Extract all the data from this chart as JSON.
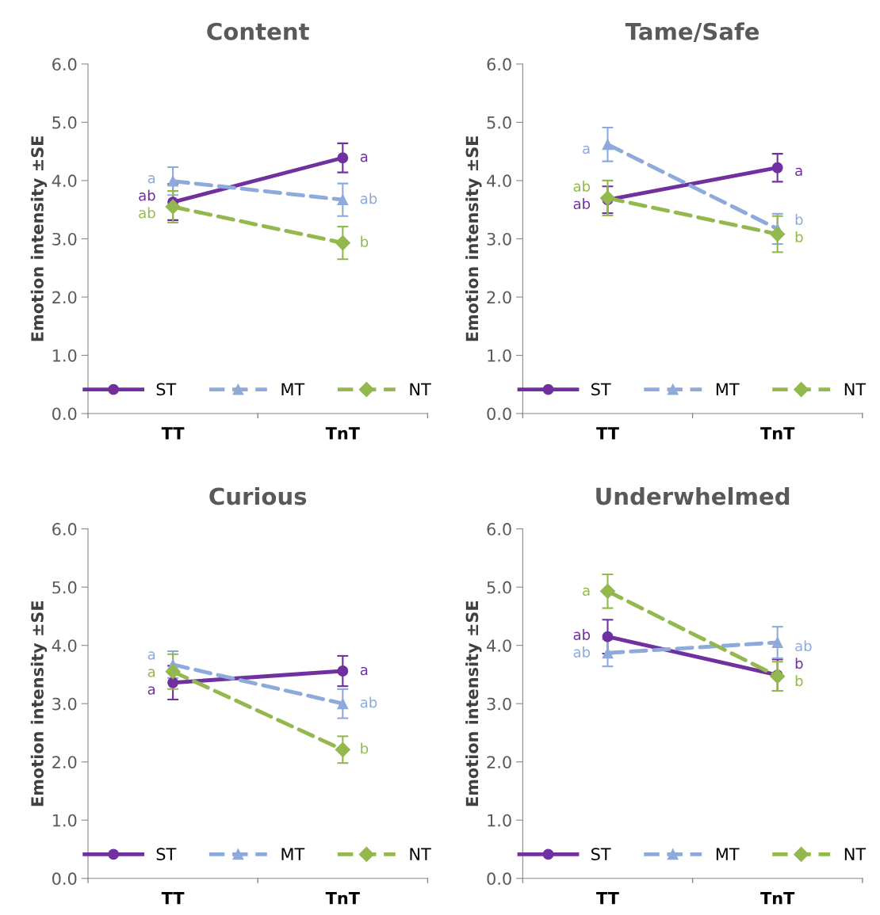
{
  "chart_data": [
    {
      "type": "line",
      "title": "Content",
      "ylabel": "Emotion intensity ±SE",
      "categories": [
        "TT",
        "TnT"
      ],
      "ylim": [
        0.0,
        6.0
      ],
      "yticks": [
        {
          "value": 0,
          "label": "0.0"
        },
        {
          "value": 1,
          "label": "1.0"
        },
        {
          "value": 2,
          "label": "2.0"
        },
        {
          "value": 3,
          "label": "3.0"
        },
        {
          "value": 4,
          "label": "4.0"
        },
        {
          "value": 5,
          "label": "5.0"
        },
        {
          "value": 6,
          "label": "6.0"
        }
      ],
      "grid": false,
      "legend": "bottom",
      "series": [
        {
          "name": "ST",
          "color": "#7030a0",
          "values": [
            3.63,
            4.39
          ],
          "errors": [
            0.31,
            0.25
          ],
          "value_labels": [
            "ab",
            "a"
          ],
          "marker": "circle",
          "line_style": "solid"
        },
        {
          "name": "MT",
          "color": "#8eaadb",
          "values": [
            3.99,
            3.67
          ],
          "errors": [
            0.24,
            0.28
          ],
          "value_labels": [
            "a",
            "ab"
          ],
          "marker": "triangle",
          "line_style": "dashed"
        },
        {
          "name": "NT",
          "color": "#92b84e",
          "values": [
            3.55,
            2.93
          ],
          "errors": [
            0.27,
            0.28
          ],
          "value_labels": [
            "ab",
            "b"
          ],
          "marker": "diamond",
          "line_style": "dashed"
        }
      ]
    },
    {
      "type": "line",
      "title": "Tame/Safe",
      "ylabel": "Emotion intensity ±SE",
      "categories": [
        "TT",
        "TnT"
      ],
      "ylim": [
        0.0,
        6.0
      ],
      "yticks": [
        {
          "value": 0,
          "label": "0.0"
        },
        {
          "value": 1,
          "label": "1.0"
        },
        {
          "value": 2,
          "label": "2.0"
        },
        {
          "value": 3,
          "label": "3.0"
        },
        {
          "value": 4,
          "label": "4.0"
        },
        {
          "value": 5,
          "label": "5.0"
        },
        {
          "value": 6,
          "label": "6.0"
        }
      ],
      "grid": false,
      "legend": "bottom",
      "series": [
        {
          "name": "ST",
          "color": "#7030a0",
          "values": [
            3.67,
            4.22
          ],
          "errors": [
            0.23,
            0.24
          ],
          "value_labels": [
            "ab",
            "a"
          ],
          "marker": "circle",
          "line_style": "solid"
        },
        {
          "name": "MT",
          "color": "#8eaadb",
          "values": [
            4.62,
            3.17
          ],
          "errors": [
            0.29,
            0.26
          ],
          "value_labels": [
            "a",
            "b"
          ],
          "marker": "triangle",
          "line_style": "dashed"
        },
        {
          "name": "NT",
          "color": "#92b84e",
          "values": [
            3.7,
            3.08
          ],
          "errors": [
            0.3,
            0.31
          ],
          "value_labels": [
            "ab",
            "b"
          ],
          "marker": "diamond",
          "line_style": "dashed"
        }
      ]
    },
    {
      "type": "line",
      "title": "Curious",
      "ylabel": "Emotion intensity ±SE",
      "categories": [
        "TT",
        "TnT"
      ],
      "ylim": [
        0.0,
        6.0
      ],
      "yticks": [
        {
          "value": 0,
          "label": "0.0"
        },
        {
          "value": 1,
          "label": "1.0"
        },
        {
          "value": 2,
          "label": "2.0"
        },
        {
          "value": 3,
          "label": "3.0"
        },
        {
          "value": 4,
          "label": "4.0"
        },
        {
          "value": 5,
          "label": "5.0"
        },
        {
          "value": 6,
          "label": "6.0"
        }
      ],
      "grid": false,
      "legend": "bottom",
      "series": [
        {
          "name": "ST",
          "color": "#7030a0",
          "values": [
            3.36,
            3.56
          ],
          "errors": [
            0.29,
            0.26
          ],
          "value_labels": [
            "a",
            "a"
          ],
          "marker": "circle",
          "line_style": "solid"
        },
        {
          "name": "MT",
          "color": "#8eaadb",
          "values": [
            3.67,
            3.0
          ],
          "errors": [
            0.23,
            0.25
          ],
          "value_labels": [
            "a",
            "ab"
          ],
          "marker": "triangle",
          "line_style": "dashed"
        },
        {
          "name": "NT",
          "color": "#92b84e",
          "values": [
            3.55,
            2.21
          ],
          "errors": [
            0.3,
            0.23
          ],
          "value_labels": [
            "a",
            "b"
          ],
          "marker": "diamond",
          "line_style": "dashed"
        }
      ]
    },
    {
      "type": "line",
      "title": "Underwhelmed",
      "ylabel": "Emotion intensity ±SE",
      "categories": [
        "TT",
        "TnT"
      ],
      "ylim": [
        0.0,
        6.0
      ],
      "yticks": [
        {
          "value": 0,
          "label": "0.0"
        },
        {
          "value": 1,
          "label": "1.0"
        },
        {
          "value": 2,
          "label": "2.0"
        },
        {
          "value": 3,
          "label": "3.0"
        },
        {
          "value": 4,
          "label": "4.0"
        },
        {
          "value": 5,
          "label": "5.0"
        },
        {
          "value": 6,
          "label": "6.0"
        }
      ],
      "grid": false,
      "legend": "bottom",
      "series": [
        {
          "name": "ST",
          "color": "#7030a0",
          "values": [
            4.15,
            3.49
          ],
          "errors": [
            0.29,
            0.27
          ],
          "value_labels": [
            "ab",
            "b"
          ],
          "marker": "circle",
          "line_style": "solid"
        },
        {
          "name": "MT",
          "color": "#8eaadb",
          "values": [
            3.87,
            4.05
          ],
          "errors": [
            0.23,
            0.27
          ],
          "value_labels": [
            "ab",
            "ab"
          ],
          "marker": "triangle",
          "line_style": "dashed"
        },
        {
          "name": "NT",
          "color": "#92b84e",
          "values": [
            4.93,
            3.47
          ],
          "errors": [
            0.29,
            0.25
          ],
          "value_labels": [
            "a",
            "b"
          ],
          "marker": "diamond",
          "line_style": "dashed"
        }
      ]
    }
  ]
}
